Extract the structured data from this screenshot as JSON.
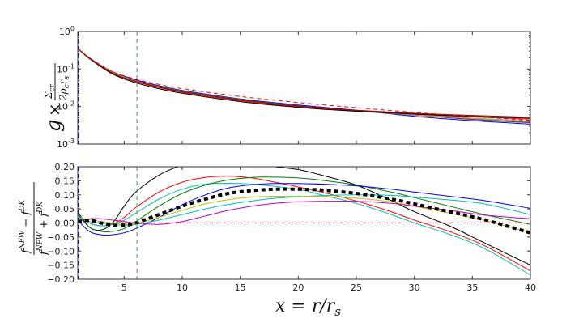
{
  "chart_data": [
    {
      "panel": "top",
      "type": "line",
      "ylabel": "g × Σ_cr / (2 ρ_c r_s)",
      "yscale": "log",
      "xlim": [
        1,
        40
      ],
      "ylim": [
        0.001,
        1
      ],
      "yticks": [
        "10^0",
        "10^-1",
        "10^-2",
        "10^-3"
      ],
      "xticks": [
        5,
        10,
        15,
        20,
        25,
        30,
        35,
        40
      ],
      "xtick_labels_visible": false,
      "grid": false,
      "vlines": [
        {
          "x": 6.1,
          "color": "#2ca02c",
          "style": "dashed"
        },
        {
          "x": 1.0,
          "color": "#0000cc",
          "style": "dashed"
        }
      ],
      "x": [
        1,
        2,
        4,
        6,
        8,
        10,
        15,
        20,
        25,
        30,
        35,
        40
      ],
      "series": [
        {
          "name": "blue",
          "color": "#0000ff",
          "style": "solid",
          "values": [
            0.36,
            0.2,
            0.085,
            0.052,
            0.036,
            0.027,
            0.016,
            0.011,
            0.008,
            0.0055,
            0.0042,
            0.0034
          ]
        },
        {
          "name": "green",
          "color": "#008000",
          "style": "solid",
          "values": [
            0.36,
            0.2,
            0.083,
            0.05,
            0.035,
            0.026,
            0.0155,
            0.0105,
            0.0078,
            0.006,
            0.0045,
            0.0037
          ]
        },
        {
          "name": "cyan",
          "color": "#00bfbf",
          "style": "solid",
          "values": [
            0.36,
            0.2,
            0.082,
            0.049,
            0.034,
            0.0255,
            0.0152,
            0.0103,
            0.0077,
            0.0061,
            0.0049,
            0.0041
          ]
        },
        {
          "name": "magenta",
          "color": "#bf00bf",
          "style": "solid",
          "values": [
            0.36,
            0.198,
            0.082,
            0.049,
            0.034,
            0.025,
            0.015,
            0.0101,
            0.0076,
            0.0059,
            0.0046,
            0.0038
          ]
        },
        {
          "name": "yellow",
          "color": "#bfbf00",
          "style": "solid",
          "values": [
            0.36,
            0.197,
            0.081,
            0.048,
            0.0335,
            0.0248,
            0.0148,
            0.01,
            0.0076,
            0.006,
            0.0048,
            0.004
          ]
        },
        {
          "name": "red",
          "color": "#ff0000",
          "style": "solid",
          "values": [
            0.36,
            0.195,
            0.078,
            0.046,
            0.032,
            0.024,
            0.0143,
            0.0098,
            0.0076,
            0.0063,
            0.0053,
            0.0046
          ]
        },
        {
          "name": "black",
          "color": "#000000",
          "style": "solid",
          "values": [
            0.36,
            0.19,
            0.074,
            0.043,
            0.03,
            0.0225,
            0.0135,
            0.0095,
            0.0075,
            0.0063,
            0.0055,
            0.0049
          ]
        },
        {
          "name": "dark-red",
          "color": "#8b0000",
          "style": "solid",
          "values": [
            0.36,
            0.195,
            0.078,
            0.047,
            0.033,
            0.025,
            0.015,
            0.0103,
            0.008,
            0.0066,
            0.0058,
            0.0052
          ]
        },
        {
          "name": "reference",
          "color": "#ff0000",
          "style": "dashed",
          "values": [
            0.36,
            0.2,
            0.086,
            0.054,
            0.039,
            0.03,
            0.0185,
            0.0128,
            0.0093,
            0.007,
            0.0054,
            0.0043
          ]
        }
      ]
    },
    {
      "panel": "bottom",
      "type": "line",
      "xlabel": "x = r / r_s",
      "ylabel": "(f^NFW − f^DK) / (f^NFW + f^DK)",
      "xlim": [
        1,
        40
      ],
      "ylim": [
        -0.2,
        0.2
      ],
      "yticks": [
        0.2,
        0.15,
        0.1,
        0.05,
        0.0,
        -0.05,
        -0.1,
        -0.15,
        -0.2
      ],
      "ytick_labels": [
        "0.20",
        "0.15",
        "0.10",
        "0.05",
        "0.00",
        "−0.05",
        "−0.10",
        "−0.15",
        "−0.20"
      ],
      "xticks": [
        5,
        10,
        15,
        20,
        25,
        30,
        35,
        40
      ],
      "grid": false,
      "vlines": [
        {
          "x": 6.1,
          "color": "#2ca02c",
          "style": "dashed"
        },
        {
          "x": 1.0,
          "color": "#0000cc",
          "style": "dashed"
        }
      ],
      "hlines": [
        {
          "y": 0.0,
          "color": "#ff0000",
          "style": "dashed"
        }
      ],
      "x": [
        1,
        2,
        3,
        4,
        5,
        6,
        8,
        10,
        12,
        14,
        16,
        18,
        20,
        22,
        25,
        28,
        30,
        33,
        36,
        40
      ],
      "series": [
        {
          "name": "black",
          "color": "#000000",
          "style": "solid",
          "values": [
            0.04,
            -0.015,
            -0.025,
            0.0,
            0.06,
            0.11,
            0.17,
            0.205,
            0.22,
            0.22,
            0.21,
            0.2,
            0.19,
            0.17,
            0.135,
            0.08,
            0.04,
            -0.01,
            -0.07,
            -0.15
          ]
        },
        {
          "name": "red",
          "color": "#ff0000",
          "style": "solid",
          "values": [
            0.03,
            0.0,
            -0.01,
            -0.005,
            0.02,
            0.055,
            0.11,
            0.145,
            0.162,
            0.166,
            0.16,
            0.145,
            0.128,
            0.11,
            0.078,
            0.04,
            0.01,
            -0.03,
            -0.08,
            -0.17
          ]
        },
        {
          "name": "cyan",
          "color": "#00bfbf",
          "style": "solid",
          "values": [
            0.03,
            0.0,
            -0.01,
            -0.005,
            0.01,
            0.035,
            0.085,
            0.12,
            0.138,
            0.141,
            0.138,
            0.13,
            0.12,
            0.1,
            0.07,
            0.03,
            0.0,
            -0.04,
            -0.09,
            -0.185
          ]
        },
        {
          "name": "green",
          "color": "#008000",
          "style": "solid",
          "values": [
            0.03,
            -0.015,
            -0.03,
            -0.03,
            -0.02,
            0.005,
            0.06,
            0.105,
            0.135,
            0.153,
            0.162,
            0.163,
            0.16,
            0.152,
            0.135,
            0.11,
            0.09,
            0.06,
            0.03,
            -0.005
          ]
        },
        {
          "name": "blue",
          "color": "#0000ff",
          "style": "solid",
          "values": [
            0.01,
            -0.03,
            -0.042,
            -0.042,
            -0.035,
            -0.02,
            0.02,
            0.065,
            0.1,
            0.125,
            0.136,
            0.14,
            0.14,
            0.138,
            0.132,
            0.12,
            0.11,
            0.095,
            0.08,
            0.052
          ]
        },
        {
          "name": "cyan-2",
          "color": "#00bfbf",
          "style": "solid",
          "values": [
            0.02,
            0.005,
            0.0,
            -0.005,
            -0.008,
            -0.005,
            0.01,
            0.03,
            0.05,
            0.066,
            0.078,
            0.088,
            0.093,
            0.097,
            0.1,
            0.098,
            0.092,
            0.082,
            0.068,
            0.03
          ]
        },
        {
          "name": "yellow",
          "color": "#bfbf00",
          "style": "solid",
          "values": [
            0.02,
            0.012,
            0.005,
            0.0,
            -0.003,
            -0.002,
            0.02,
            0.045,
            0.068,
            0.083,
            0.092,
            0.095,
            0.095,
            0.094,
            0.088,
            0.075,
            0.06,
            0.035,
            0.01,
            -0.035
          ]
        },
        {
          "name": "magenta",
          "color": "#bf00bf",
          "style": "solid",
          "values": [
            0.005,
            0.015,
            0.015,
            0.01,
            0.005,
            0.0,
            -0.005,
            0.005,
            0.025,
            0.045,
            0.06,
            0.07,
            0.075,
            0.077,
            0.077,
            0.07,
            0.06,
            0.045,
            0.028,
            0.015
          ]
        },
        {
          "name": "mean",
          "color": "#000000",
          "style": "thick-dotted",
          "values": [
            0.005,
            0.01,
            0.0,
            -0.008,
            -0.008,
            0.0,
            0.03,
            0.06,
            0.085,
            0.105,
            0.115,
            0.12,
            0.12,
            0.117,
            0.105,
            0.085,
            0.068,
            0.04,
            0.012,
            -0.035
          ]
        }
      ]
    }
  ]
}
